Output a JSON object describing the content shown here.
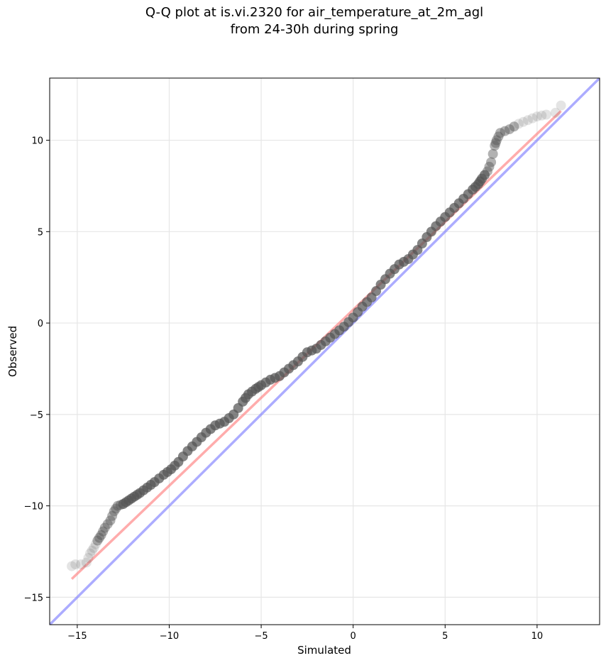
{
  "chart_data": {
    "type": "scatter",
    "title": "Q-Q plot at is.vi.2320 for air_temperature_at_2m_agl",
    "subtitle": "from 24-30h during spring",
    "xlabel": "Simulated",
    "ylabel": "Observed",
    "xlim": [
      -16.5,
      13.4
    ],
    "ylim": [
      -16.5,
      13.4
    ],
    "xticks": [
      -15,
      -10,
      -5,
      0,
      5,
      10
    ],
    "yticks": [
      -15,
      -10,
      -5,
      0,
      5,
      10
    ],
    "grid": true,
    "points_color": "#555555",
    "fit_color": "#ff8080",
    "identity_color": "#8080ff",
    "quantiles": {
      "simulated": [
        -15.3,
        -15.1,
        -14.8,
        -14.5,
        -14.3,
        -14.1,
        -13.9,
        -13.7,
        -13.5,
        -13.2,
        -13.0,
        -12.8,
        -12.5,
        -12.2,
        -11.9,
        -11.6,
        -11.2,
        -10.8,
        -10.3,
        -9.9,
        -9.5,
        -9.0,
        -8.5,
        -8.0,
        -7.5,
        -7.0,
        -6.5,
        -6.0,
        -5.7,
        -5.3,
        -5.0,
        -4.5,
        -4.0,
        -3.5,
        -3.0,
        -2.5,
        -2.0,
        -1.5,
        -1.0,
        -0.5,
        0.0,
        0.5,
        1.0,
        1.5,
        2.0,
        2.5,
        3.0,
        3.5,
        4.0,
        4.5,
        5.0,
        5.5,
        6.0,
        6.5,
        6.8,
        7.0,
        7.3,
        7.5,
        7.7,
        7.8,
        8.0,
        8.5,
        9.0,
        9.5,
        10.0,
        10.5,
        11.0,
        11.3
      ],
      "observed": [
        -13.3,
        -13.2,
        -13.2,
        -13.1,
        -12.6,
        -12.3,
        -11.9,
        -11.6,
        -11.2,
        -10.8,
        -10.3,
        -10.0,
        -9.9,
        -9.7,
        -9.5,
        -9.3,
        -9.0,
        -8.7,
        -8.3,
        -8.0,
        -7.6,
        -7.0,
        -6.5,
        -6.0,
        -5.6,
        -5.4,
        -5.0,
        -4.3,
        -3.9,
        -3.6,
        -3.4,
        -3.1,
        -2.9,
        -2.5,
        -2.1,
        -1.6,
        -1.4,
        -1.0,
        -0.6,
        -0.2,
        0.3,
        0.9,
        1.4,
        2.1,
        2.7,
        3.2,
        3.5,
        4.0,
        4.7,
        5.3,
        5.8,
        6.3,
        6.8,
        7.3,
        7.6,
        7.9,
        8.3,
        8.8,
        9.7,
        10.0,
        10.4,
        10.6,
        10.9,
        11.1,
        11.3,
        11.4,
        11.5,
        11.9
      ]
    },
    "fit_line": {
      "x": [
        -15.3,
        11.3
      ],
      "y": [
        -14.0,
        11.6
      ]
    },
    "identity_line": {
      "x": [
        -16.5,
        13.4
      ],
      "y": [
        -16.5,
        13.4
      ]
    }
  }
}
